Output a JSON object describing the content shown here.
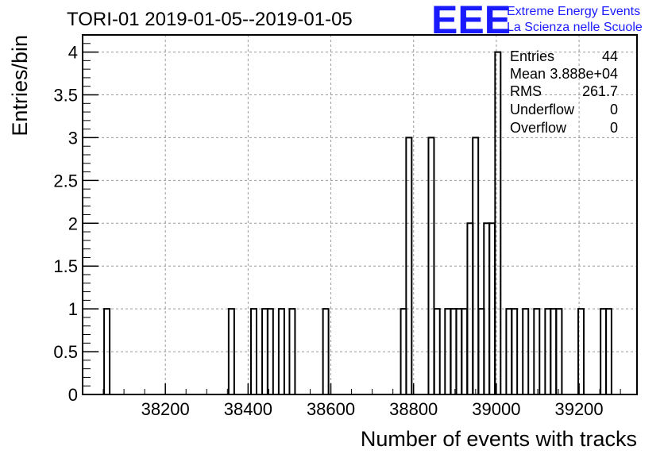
{
  "chart_data": {
    "type": "bar",
    "title": "TORI-01 2019-01-05--2019-01-05",
    "xlabel": "Number of events with tracks",
    "ylabel": "Entries/bin",
    "xlim": [
      38000,
      39340
    ],
    "ylim": [
      0,
      4.2
    ],
    "grid": true,
    "xticks": [
      38200,
      38400,
      38600,
      38800,
      39000,
      39200
    ],
    "yticks": [
      0,
      0.5,
      1,
      1.5,
      2,
      2.5,
      3,
      3.5,
      4
    ],
    "ytick_labels": [
      "0",
      "0.5",
      "1",
      "1.5",
      "2",
      "2.5",
      "3",
      "3.5",
      "4"
    ],
    "bin_width": 13.4,
    "bins": [
      {
        "x": 38052,
        "value": 1
      },
      {
        "x": 38353,
        "value": 1
      },
      {
        "x": 38407,
        "value": 1
      },
      {
        "x": 38434,
        "value": 1
      },
      {
        "x": 38447,
        "value": 1
      },
      {
        "x": 38474,
        "value": 1
      },
      {
        "x": 38500,
        "value": 1
      },
      {
        "x": 38581,
        "value": 1
      },
      {
        "x": 38769,
        "value": 1
      },
      {
        "x": 38782,
        "value": 3
      },
      {
        "x": 38836,
        "value": 3
      },
      {
        "x": 38850,
        "value": 1
      },
      {
        "x": 38876,
        "value": 1
      },
      {
        "x": 38890,
        "value": 1
      },
      {
        "x": 38903,
        "value": 1
      },
      {
        "x": 38916,
        "value": 1
      },
      {
        "x": 38930,
        "value": 2
      },
      {
        "x": 38943,
        "value": 3
      },
      {
        "x": 38957,
        "value": 1
      },
      {
        "x": 38970,
        "value": 2
      },
      {
        "x": 38983,
        "value": 2
      },
      {
        "x": 38997,
        "value": 4
      },
      {
        "x": 39024,
        "value": 1
      },
      {
        "x": 39037,
        "value": 1
      },
      {
        "x": 39064,
        "value": 1
      },
      {
        "x": 39091,
        "value": 1
      },
      {
        "x": 39118,
        "value": 1
      },
      {
        "x": 39131,
        "value": 1
      },
      {
        "x": 39145,
        "value": 1
      },
      {
        "x": 39198,
        "value": 1
      },
      {
        "x": 39252,
        "value": 1
      },
      {
        "x": 39265,
        "value": 1
      }
    ]
  },
  "stats": {
    "entries_label": "Entries",
    "entries_value": "44",
    "mean_label": "Mean",
    "mean_value": "3.888e+04",
    "rms_label": "RMS",
    "rms_value": "261.7",
    "underflow_label": "Underflow",
    "underflow_value": "0",
    "overflow_label": "Overflow",
    "overflow_value": "0"
  },
  "logo": {
    "letters": "EEE",
    "line1": "Extreme Energy Events",
    "line2": "La Scienza nelle Scuole",
    "color": "#1a1aff"
  }
}
